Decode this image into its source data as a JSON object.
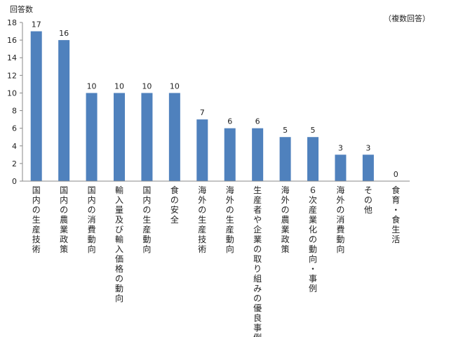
{
  "chart_data": {
    "type": "bar",
    "ylabel": "回答数",
    "note": "（複数回答）",
    "ylim": [
      0,
      18
    ],
    "yticks": [
      0,
      2,
      4,
      6,
      8,
      10,
      12,
      14,
      16,
      18
    ],
    "bar_color": "#4f81bd",
    "grid": false,
    "categories": [
      "国内の生産技術",
      "国内の農業政策",
      "国内の消費動向",
      "輸入量及び輸入価格の動向",
      "国内の生産動向",
      "食の安全",
      "海外の生産技術",
      "海外の生産動向",
      "生産者や企業の取り組みの優良事例",
      "海外の農業政策",
      "６次産業化の動向・事例",
      "海外の消費動向",
      "その他",
      "食育・食生活"
    ],
    "values": [
      17,
      16,
      10,
      10,
      10,
      10,
      7,
      6,
      6,
      5,
      5,
      3,
      3,
      0
    ]
  }
}
